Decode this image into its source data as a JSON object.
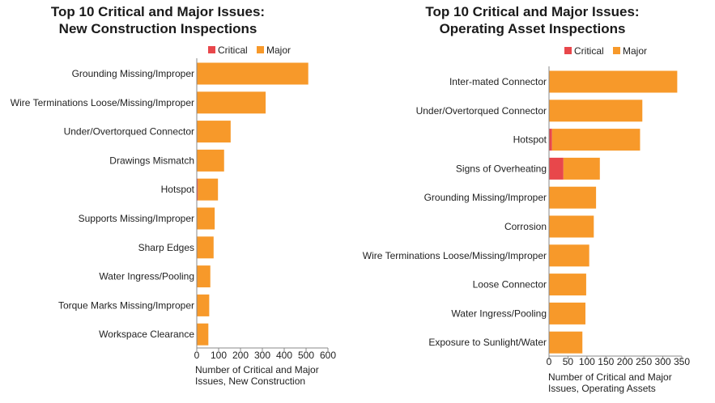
{
  "colors": {
    "critical": "#e8474b",
    "major": "#f7992a",
    "axis": "#888888"
  },
  "chart_data": [
    {
      "type": "bar",
      "orientation": "horizontal",
      "stacked": true,
      "title_lines": [
        "Top 10 Critical and Major Issues:",
        "New Construction Inspections"
      ],
      "categories": [
        "Grounding Missing/Improper",
        "Wire Terminations Loose/Missing/Improper",
        "Under/Overtorqued Connector",
        "Drawings Mismatch",
        "Hotspot",
        "Supports Missing/Improper",
        "Sharp Edges",
        "Water Ingress/Pooling",
        "Torque Marks Missing/Improper",
        "Workspace Clearance"
      ],
      "series": [
        {
          "name": "Critical",
          "values": [
            0,
            0,
            0,
            0,
            5,
            0,
            0,
            0,
            0,
            0
          ]
        },
        {
          "name": "Major",
          "values": [
            510,
            315,
            155,
            125,
            92,
            82,
            77,
            62,
            57,
            53
          ]
        }
      ],
      "xlim": [
        0,
        600
      ],
      "xticks": [
        "0",
        "100",
        "200",
        "300",
        "400",
        "500",
        "600"
      ],
      "xlabel_lines": [
        "Number of Critical and Major",
        "Issues, New Construction"
      ],
      "legend": "top"
    },
    {
      "type": "bar",
      "orientation": "horizontal",
      "stacked": true,
      "title_lines": [
        "Top 10 Critical and Major Issues:",
        "Operating Asset Inspections"
      ],
      "categories": [
        "Inter-mated Connector",
        "Under/Overtorqued Connector",
        "Hotspot",
        "Signs of Overheating",
        "Grounding Missing/Improper",
        "Corrosion",
        "Wire Terminations Loose/Missing/Improper",
        "Loose Connector",
        "Water Ingress/Pooling",
        "Exposure to Sunlight/Water"
      ],
      "series": [
        {
          "name": "Critical",
          "values": [
            0,
            0,
            8,
            38,
            0,
            0,
            0,
            0,
            0,
            0
          ]
        },
        {
          "name": "Major",
          "values": [
            338,
            246,
            232,
            96,
            124,
            118,
            106,
            98,
            96,
            88
          ]
        }
      ],
      "xlim": [
        0,
        350
      ],
      "xticks": [
        "0",
        "50",
        "100",
        "150",
        "200",
        "250",
        "300",
        "350"
      ],
      "xlabel_lines": [
        "Number of Critical and Major",
        "Issues, Operating Assets"
      ],
      "legend": "top"
    }
  ]
}
